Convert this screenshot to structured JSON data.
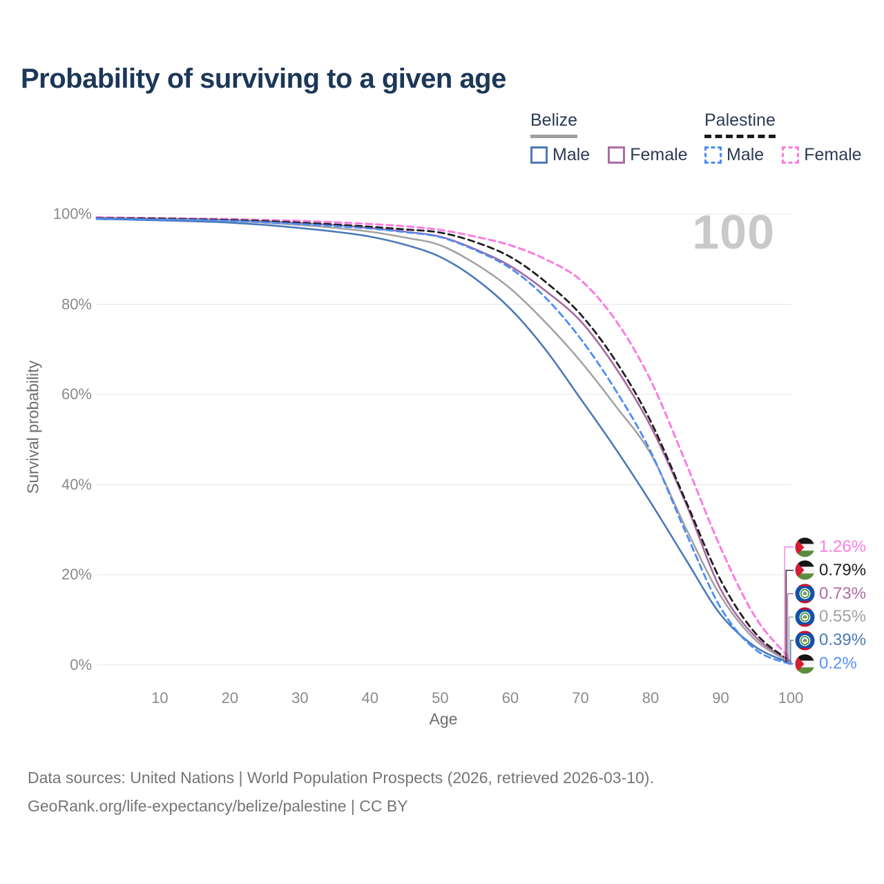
{
  "title": "Probability of surviving to a given age",
  "watermark": "100",
  "legend": {
    "groups": [
      {
        "name": "Belize",
        "line_style": "solid",
        "line_color": "#9e9e9e",
        "items": [
          {
            "label": "Male",
            "color": "#4a79b8",
            "dashed": false
          },
          {
            "label": "Female",
            "color": "#ad6ca3",
            "dashed": false
          }
        ]
      },
      {
        "name": "Palestine",
        "line_style": "dashed",
        "line_color": "#1a1a1a",
        "items": [
          {
            "label": "Male",
            "color": "#4a8cf7",
            "dashed": true
          },
          {
            "label": "Female",
            "color": "#f97ce1",
            "dashed": true
          }
        ]
      }
    ]
  },
  "chart_data": {
    "type": "line",
    "title": "Probability of surviving to a given age",
    "xlabel": "Age",
    "ylabel": "Survival probability",
    "xlim": [
      1,
      100
    ],
    "ylim": [
      0,
      100
    ],
    "grid": "horizontal",
    "legend_position": "top-right",
    "x_ticks": [
      10,
      20,
      30,
      40,
      50,
      60,
      70,
      80,
      90,
      100
    ],
    "y_ticks": [
      {
        "value": 100,
        "label": "100%"
      },
      {
        "value": 80,
        "label": "80%"
      },
      {
        "value": 60,
        "label": "60%"
      },
      {
        "value": 40,
        "label": "40%"
      },
      {
        "value": 20,
        "label": "20%"
      },
      {
        "value": 0,
        "label": "0%"
      }
    ],
    "x": [
      1,
      5,
      10,
      15,
      20,
      25,
      30,
      35,
      40,
      45,
      50,
      55,
      60,
      65,
      70,
      75,
      80,
      85,
      90,
      95,
      100
    ],
    "series": [
      {
        "name": "Palestine Female",
        "country": "Palestine",
        "sex": "Female",
        "color": "#f97ce1",
        "dashed": true,
        "width": 3,
        "end_label": "1.26%",
        "label_color": "#f97ce1",
        "flag": "palestine",
        "values": [
          99.3,
          99.2,
          99.1,
          99.0,
          98.9,
          98.7,
          98.5,
          98.2,
          97.8,
          97.3,
          96.5,
          95.0,
          93.1,
          90.0,
          85.4,
          76.5,
          63.2,
          45.0,
          26.0,
          10.5,
          1.26
        ]
      },
      {
        "name": "Palestine Both sexes",
        "country": "Palestine",
        "sex": "Both",
        "color": "#1f1f1f",
        "dashed": true,
        "width": 2.8,
        "end_label": "0.79%",
        "label_color": "#1f1f1f",
        "flag": "palestine",
        "values": [
          99.1,
          99.05,
          99.0,
          98.85,
          98.7,
          98.45,
          98.1,
          97.7,
          97.2,
          96.6,
          95.9,
          93.8,
          90.5,
          85.0,
          77.8,
          67.5,
          54.1,
          36.5,
          18.8,
          7.0,
          0.79
        ]
      },
      {
        "name": "Belize Female",
        "country": "Belize",
        "sex": "Female",
        "color": "#a8679f",
        "dashed": false,
        "width": 2.6,
        "end_label": "0.73%",
        "label_color": "#ad6ca3",
        "flag": "belize",
        "values": [
          99.2,
          99.1,
          99.0,
          98.9,
          98.7,
          98.4,
          98.0,
          97.55,
          96.9,
          96.1,
          95.0,
          92.2,
          88.5,
          83.0,
          76.3,
          66.0,
          53.0,
          36.0,
          16.8,
          6.2,
          0.73
        ]
      },
      {
        "name": "Belize Both sexes",
        "country": "Belize",
        "sex": "Both",
        "color": "#a3a3a3",
        "dashed": false,
        "width": 2.6,
        "end_label": "0.55%",
        "label_color": "#a0a0a0",
        "flag": "belize",
        "values": [
          99.1,
          99.0,
          98.9,
          98.7,
          98.5,
          98.1,
          97.6,
          96.95,
          96.1,
          94.8,
          93.1,
          89.0,
          83.5,
          76.0,
          67.4,
          57.5,
          46.9,
          30.5,
          15.3,
          5.5,
          0.55
        ]
      },
      {
        "name": "Belize Male",
        "country": "Belize",
        "sex": "Male",
        "color": "#4a79b8",
        "dashed": false,
        "width": 2.6,
        "end_label": "0.39%",
        "label_color": "#4a79b8",
        "flag": "belize",
        "values": [
          98.9,
          98.8,
          98.6,
          98.4,
          98.1,
          97.6,
          96.9,
          96.1,
          95.0,
          93.2,
          90.5,
          85.7,
          79.0,
          70.0,
          59.1,
          48.0,
          36.1,
          23.5,
          11.2,
          4.0,
          0.39
        ]
      },
      {
        "name": "Palestine Male",
        "country": "Palestine",
        "sex": "Male",
        "color": "#4a8cf7",
        "dashed": true,
        "width": 2.8,
        "end_label": "0.2%",
        "label_color": "#5b8ff2",
        "flag": "palestine",
        "values": [
          99.0,
          98.9,
          98.8,
          98.7,
          98.5,
          98.2,
          97.8,
          97.35,
          96.8,
          96.0,
          94.9,
          92.0,
          88.0,
          81.5,
          72.4,
          61.0,
          47.4,
          29.5,
          12.7,
          3.4,
          0.2
        ]
      }
    ]
  },
  "footer": {
    "line1": "Data sources: United Nations | World Population Prospects (2026, retrieved 2026-03-10).",
    "line2": "GeoRank.org/life-expectancy/belize/palestine | CC BY"
  }
}
